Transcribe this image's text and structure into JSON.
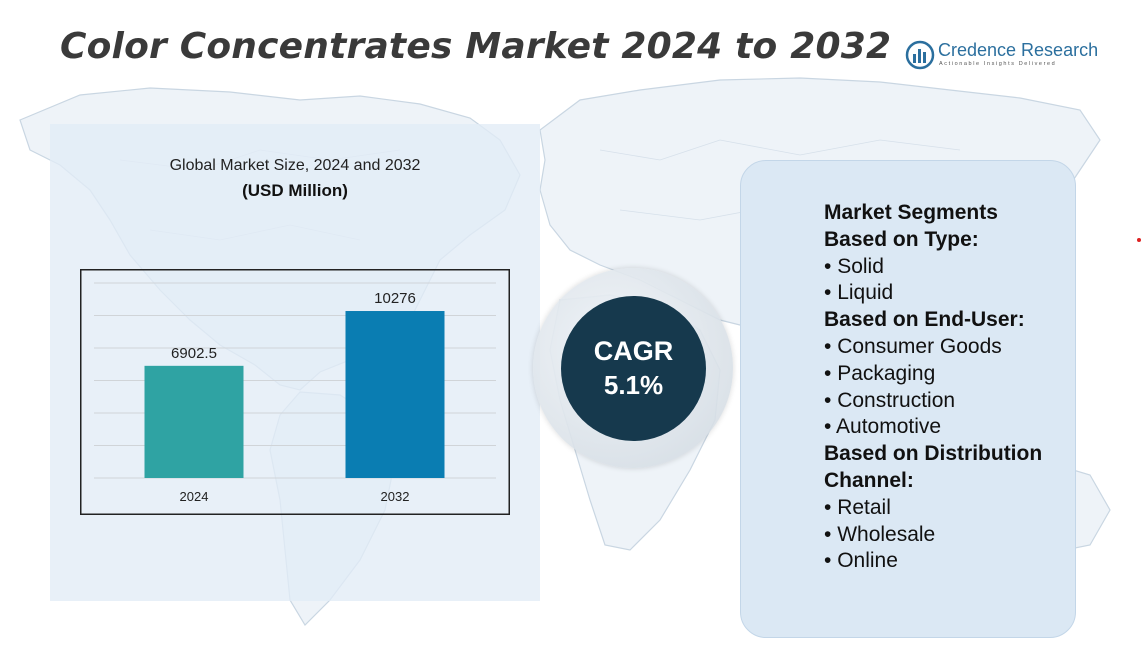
{
  "title": "Color Concentrates Market 2024 to 2032",
  "brand": {
    "name": "Credence Research",
    "tagline": "Actionable Insights Delivered",
    "color": "#2b6f9e",
    "icon": "bar-chart-logo-icon"
  },
  "chart_data": {
    "type": "bar",
    "title": "Global Market Size, 2024 and 2032",
    "unit_label": "(USD Million)",
    "categories": [
      "2024",
      "2032"
    ],
    "values": [
      6902.5,
      10276
    ],
    "value_labels": [
      "6902.5",
      "10276"
    ],
    "colors": [
      "#2fa3a3",
      "#0a7db2"
    ],
    "ylim": [
      0,
      12000
    ],
    "grid": true,
    "legend": "none"
  },
  "cagr": {
    "label": "CAGR",
    "value": "5.1%",
    "color": "#16394d"
  },
  "segments": {
    "heading": "Market Segments",
    "groups": [
      {
        "title": "Based on Type:",
        "items": [
          "Solid",
          "Liquid"
        ]
      },
      {
        "title": "Based on End-User:",
        "items": [
          "Consumer Goods",
          "Packaging",
          "Construction",
          "Automotive"
        ]
      },
      {
        "title_line1": "Based on Distribution",
        "title_line2": "Channel:",
        "items": [
          "Retail",
          "Wholesale",
          "Online"
        ]
      }
    ]
  }
}
